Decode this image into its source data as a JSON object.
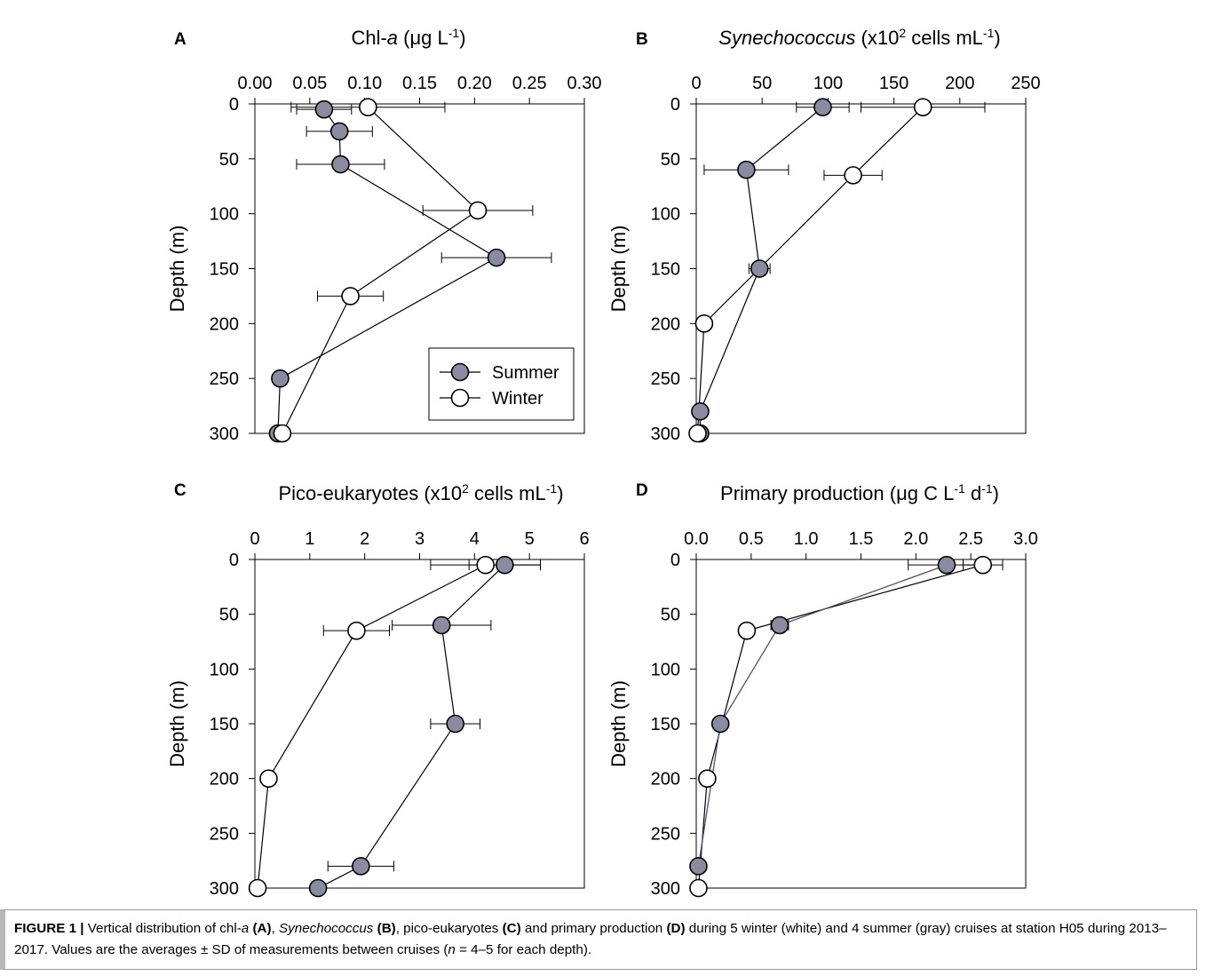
{
  "chart_data": [
    {
      "panel": "A",
      "type": "scatter",
      "title_parts": [
        "Chl-",
        "a",
        " (",
        "μg L",
        "-1",
        ")"
      ],
      "ylabel": "Depth (m)",
      "xlim": [
        0,
        0.3
      ],
      "ylim": [
        0,
        300
      ],
      "xticks": [
        "0.00",
        "0.05",
        "0.10",
        "0.15",
        "0.20",
        "0.25",
        "0.30"
      ],
      "yticks": [
        "0",
        "50",
        "100",
        "150",
        "200",
        "250",
        "300"
      ],
      "legend": {
        "position": "lower-right",
        "entries": [
          "Summer",
          "Winter"
        ]
      },
      "series": [
        {
          "name": "Summer",
          "color": "#8a8aa0",
          "points": [
            {
              "x": 0.063,
              "y": 5,
              "err": 0.025
            },
            {
              "x": 0.077,
              "y": 25,
              "err": 0.03
            },
            {
              "x": 0.078,
              "y": 55,
              "err": 0.04
            },
            {
              "x": 0.22,
              "y": 140,
              "err": 0.05
            },
            {
              "x": 0.023,
              "y": 250
            },
            {
              "x": 0.021,
              "y": 300
            }
          ]
        },
        {
          "name": "Winter",
          "color": "#ffffff",
          "points": [
            {
              "x": 0.103,
              "y": 3,
              "err": 0.07
            },
            {
              "x": 0.203,
              "y": 97,
              "err": 0.05
            },
            {
              "x": 0.087,
              "y": 175,
              "err": 0.03
            },
            {
              "x": 0.025,
              "y": 300
            }
          ]
        }
      ]
    },
    {
      "panel": "B",
      "type": "scatter",
      "title_parts": [
        "Synechococcus",
        " (x10",
        "2",
        " cells mL",
        "-1",
        ")"
      ],
      "ylabel": "Depth (m)",
      "xlim": [
        0,
        250
      ],
      "ylim": [
        0,
        300
      ],
      "xticks": [
        "0",
        "50",
        "100",
        "150",
        "200",
        "250"
      ],
      "yticks": [
        "0",
        "50",
        "100",
        "150",
        "200",
        "250",
        "300"
      ],
      "series": [
        {
          "name": "Summer",
          "color": "#8a8aa0",
          "points": [
            {
              "x": 96,
              "y": 3,
              "err": 20
            },
            {
              "x": 38,
              "y": 60,
              "err": 32
            },
            {
              "x": 48,
              "y": 150,
              "err": 8
            },
            {
              "x": 3,
              "y": 280
            },
            {
              "x": 3,
              "y": 300
            }
          ]
        },
        {
          "name": "Winter",
          "color": "#ffffff",
          "points": [
            {
              "x": 172,
              "y": 3,
              "err": 47
            },
            {
              "x": 119,
              "y": 65,
              "err": 22
            },
            {
              "x": 6,
              "y": 200
            },
            {
              "x": 1,
              "y": 300
            }
          ]
        }
      ]
    },
    {
      "panel": "C",
      "type": "scatter",
      "title_parts": [
        "Pico-eukaryotes (x10",
        "2",
        " cells mL",
        "-1",
        ")"
      ],
      "ylabel": "Depth (m)",
      "xlim": [
        0,
        6
      ],
      "ylim": [
        0,
        300
      ],
      "xticks": [
        "0",
        "1",
        "2",
        "3",
        "4",
        "5",
        "6"
      ],
      "yticks": [
        "0",
        "50",
        "100",
        "150",
        "200",
        "250",
        "300"
      ],
      "series": [
        {
          "name": "Summer",
          "color": "#8a8aa0",
          "points": [
            {
              "x": 4.55,
              "y": 5,
              "err": 0.65
            },
            {
              "x": 3.4,
              "y": 60,
              "err": 0.9
            },
            {
              "x": 3.65,
              "y": 150,
              "err": 0.45
            },
            {
              "x": 1.93,
              "y": 280,
              "err": 0.6
            },
            {
              "x": 1.15,
              "y": 300
            }
          ]
        },
        {
          "name": "Winter",
          "color": "#ffffff",
          "points": [
            {
              "x": 4.2,
              "y": 5,
              "err": 1.0
            },
            {
              "x": 1.85,
              "y": 65,
              "err": 0.6
            },
            {
              "x": 0.25,
              "y": 200
            },
            {
              "x": 0.05,
              "y": 300
            }
          ]
        }
      ]
    },
    {
      "panel": "D",
      "type": "scatter",
      "title_parts": [
        "Primary production (",
        "μg C L",
        "-1",
        " d",
        "-1",
        ")"
      ],
      "ylabel": "Depth (m)",
      "xlim": [
        0,
        3.0
      ],
      "ylim": [
        0,
        300
      ],
      "xticks": [
        "0.0",
        "0.5",
        "1.0",
        "1.5",
        "2.0",
        "2.5",
        "3.0"
      ],
      "yticks": [
        "0",
        "50",
        "100",
        "150",
        "200",
        "250",
        "300"
      ],
      "series": [
        {
          "name": "Summer",
          "color": "#8a8aa0",
          "points": [
            {
              "x": 2.28,
              "y": 5,
              "err": 0.35
            },
            {
              "x": 0.76,
              "y": 60,
              "err": 0.08
            },
            {
              "x": 0.22,
              "y": 150
            },
            {
              "x": 0.02,
              "y": 280
            }
          ]
        },
        {
          "name": "Winter",
          "color": "#ffffff",
          "points": [
            {
              "x": 2.61,
              "y": 5,
              "err": 0.18
            },
            {
              "x": 0.46,
              "y": 65
            },
            {
              "x": 0.1,
              "y": 200
            },
            {
              "x": 0.02,
              "y": 300
            }
          ]
        }
      ]
    }
  ],
  "caption": {
    "label": "FIGURE 1 |",
    "segments": [
      {
        "t": " Vertical distribution of chl-",
        "s": "n"
      },
      {
        "t": "a",
        "s": "i"
      },
      {
        "t": " ",
        "s": "n"
      },
      {
        "t": "(A)",
        "s": "b"
      },
      {
        "t": ", ",
        "s": "n"
      },
      {
        "t": "Synechococcus",
        "s": "i"
      },
      {
        "t": " ",
        "s": "n"
      },
      {
        "t": "(B)",
        "s": "b"
      },
      {
        "t": ", pico-eukaryotes ",
        "s": "n"
      },
      {
        "t": "(C)",
        "s": "b"
      },
      {
        "t": " and primary production ",
        "s": "n"
      },
      {
        "t": "(D)",
        "s": "b"
      },
      {
        "t": " during 5 winter (white) and 4 summer (gray) cruises at station H05 during 2013–2017. Values are the averages ± SD of measurements between cruises (",
        "s": "n"
      },
      {
        "t": "n",
        "s": "i"
      },
      {
        "t": " = 4–5 for each depth).",
        "s": "n"
      }
    ]
  }
}
